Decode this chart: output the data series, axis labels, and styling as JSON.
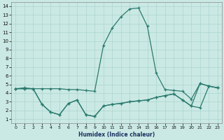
{
  "xlabel": "Humidex (Indice chaleur)",
  "bg_color": "#cbe9e4",
  "grid_color": "#b0d8d2",
  "line_color": "#2a7a6e",
  "xlim": [
    -0.5,
    23.5
  ],
  "ylim": [
    0.5,
    14.5
  ],
  "xticks": [
    0,
    1,
    2,
    3,
    4,
    5,
    6,
    7,
    8,
    9,
    10,
    11,
    12,
    13,
    14,
    15,
    16,
    17,
    18,
    19,
    20,
    21,
    22,
    23
  ],
  "yticks": [
    1,
    2,
    3,
    4,
    5,
    6,
    7,
    8,
    9,
    10,
    11,
    12,
    13,
    14
  ],
  "series": [
    {
      "x": [
        0,
        1,
        2,
        3,
        4,
        5,
        6,
        7,
        8,
        9,
        10,
        11,
        12,
        13,
        14,
        15,
        16,
        17,
        18,
        19,
        20,
        21,
        22,
        23
      ],
      "y": [
        4.5,
        4.6,
        4.5,
        4.5,
        4.5,
        4.5,
        4.4,
        4.4,
        4.3,
        4.2,
        9.5,
        11.5,
        12.8,
        13.7,
        13.8,
        11.7,
        6.3,
        4.4,
        4.3,
        4.2,
        3.3,
        5.1,
        4.8,
        4.6
      ]
    },
    {
      "x": [
        0,
        1,
        2,
        3,
        4,
        5,
        6,
        7,
        8,
        9,
        10,
        11,
        12,
        13,
        14,
        15,
        16,
        17,
        18,
        19,
        20,
        21,
        22,
        23
      ],
      "y": [
        4.5,
        4.5,
        4.5,
        2.7,
        1.8,
        1.5,
        2.8,
        3.2,
        1.5,
        1.3,
        2.5,
        2.7,
        2.8,
        3.0,
        3.1,
        3.2,
        3.5,
        3.7,
        3.9,
        3.2,
        2.5,
        5.1,
        4.8,
        4.6
      ]
    },
    {
      "x": [
        0,
        1,
        2,
        3,
        4,
        5,
        6,
        7,
        8,
        9,
        10,
        11,
        12,
        13,
        14,
        15,
        16,
        17,
        18,
        19,
        20,
        21,
        22,
        23
      ],
      "y": [
        4.5,
        4.5,
        4.5,
        2.7,
        1.8,
        1.5,
        2.8,
        3.2,
        1.5,
        1.3,
        2.5,
        2.7,
        2.8,
        3.0,
        3.1,
        3.2,
        3.5,
        3.7,
        3.9,
        3.2,
        2.5,
        2.3,
        4.8,
        4.6
      ]
    }
  ]
}
